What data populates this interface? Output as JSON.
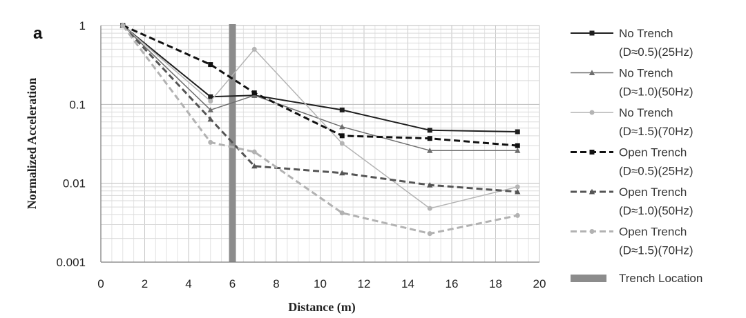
{
  "chart_data": {
    "type": "line",
    "panel_label": "a",
    "xlabel": "Distance (m)",
    "ylabel": "Normalized  Acceleration",
    "x_scale": "linear",
    "y_scale": "log",
    "xlim": [
      0,
      20
    ],
    "ylim": [
      0.001,
      1
    ],
    "x_ticks": [
      "0",
      "2",
      "4",
      "6",
      "8",
      "10",
      "12",
      "14",
      "16",
      "18",
      "20"
    ],
    "y_ticks": [
      {
        "value": 1,
        "label": "1"
      },
      {
        "value": 0.1,
        "label": "0.1"
      },
      {
        "value": 0.01,
        "label": "0.01"
      },
      {
        "value": 0.001,
        "label": "0.001"
      }
    ],
    "grid": true,
    "legend_position": "right",
    "trench_location": {
      "x": 6,
      "label": "Trench Location",
      "color": "#8c8c8c"
    },
    "series": [
      {
        "name": "No Trench",
        "subname": "(D≈0.5)(25Hz)",
        "color": "#1e1e1e",
        "dash": "solid",
        "width": 2,
        "marker": "square",
        "x": [
          1,
          5,
          7,
          11,
          15,
          19
        ],
        "values": [
          1,
          0.125,
          0.13,
          0.085,
          0.047,
          0.045
        ]
      },
      {
        "name": "No Trench",
        "subname": "(D≈1.0)(50Hz)",
        "color": "#6e6e6e",
        "dash": "solid",
        "width": 1.5,
        "marker": "triangle",
        "x": [
          1,
          5,
          7,
          11,
          15,
          19
        ],
        "values": [
          1,
          0.085,
          0.13,
          0.052,
          0.026,
          0.026
        ]
      },
      {
        "name": "No Trench",
        "subname": "(D≈1.5)(70Hz)",
        "color": "#b4b4b4",
        "dash": "solid",
        "width": 1.5,
        "marker": "circle",
        "x": [
          1,
          5,
          7,
          11,
          15,
          19
        ],
        "values": [
          1,
          0.11,
          0.5,
          0.032,
          0.0048,
          0.009
        ]
      },
      {
        "name": "Open Trench",
        "subname": "(D≈0.5)(25Hz)",
        "color": "#111111",
        "dash": "dashed",
        "width": 3,
        "marker": "square",
        "x": [
          1,
          5,
          7,
          11,
          15,
          19
        ],
        "values": [
          1,
          0.32,
          0.14,
          0.04,
          0.037,
          0.03
        ]
      },
      {
        "name": "Open Trench",
        "subname": "(D≈1.0)(50Hz)",
        "color": "#555555",
        "dash": "dashed",
        "width": 3,
        "marker": "triangle",
        "x": [
          1,
          5,
          7,
          11,
          15,
          19
        ],
        "values": [
          1,
          0.065,
          0.0165,
          0.0135,
          0.0095,
          0.0078
        ]
      },
      {
        "name": "Open Trench",
        "subname": "(D≈1.5)(70Hz)",
        "color": "#b2b2b2",
        "dash": "dashed",
        "width": 3,
        "marker": "circle",
        "x": [
          1,
          5,
          7,
          11,
          15,
          19
        ],
        "values": [
          1,
          0.033,
          0.025,
          0.0042,
          0.0023,
          0.0039
        ]
      }
    ]
  }
}
